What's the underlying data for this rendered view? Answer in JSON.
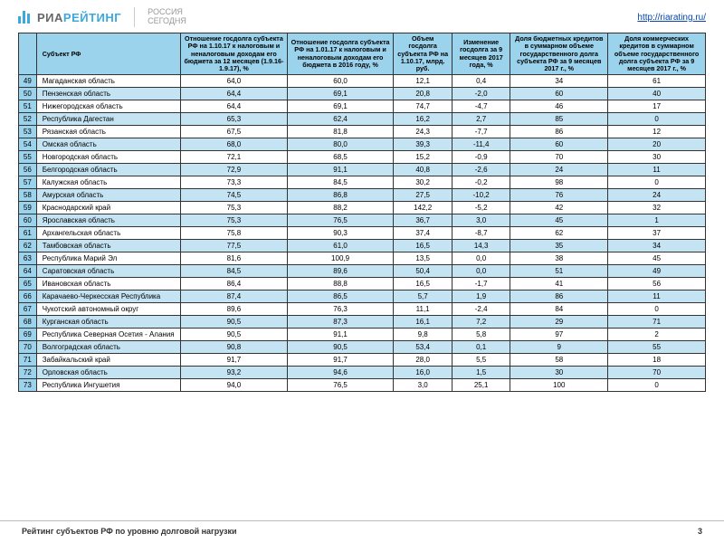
{
  "brand": {
    "ria": "РИА",
    "rating": "РЕЙТИНГ",
    "sub1": "РОССИЯ",
    "sub2": "СЕГОДНЯ"
  },
  "url": "http://riarating.ru/",
  "footer": {
    "title": "Рейтинг субъектов РФ по уровню долговой нагрузки",
    "page": "3"
  },
  "columns": [
    "",
    "Субъект РФ",
    "Отношение госдолга субъекта РФ на 1.10.17 к налоговым и неналоговым доходам его бюджета за 12 месяцев (1.9.16-1.9.17), %",
    "Отношение госдолга субъекта РФ на 1.01.17 к налоговым и неналоговым доходам его бюджета в 2016 году, %",
    "Объем госдолга субъекта РФ на 1.10.17, млрд. руб.",
    "Изменение госдолга за 9 месяцев 2017 года, %",
    "Доля бюджетных кредитов в суммарном объеме государственного долга субъекта РФ за 9 месяцев 2017 г., %",
    "Доля коммерческих кредитов в суммарном объеме государственного долга субъекта РФ за 9 месяцев 2017 г., %"
  ],
  "rows": [
    {
      "n": "49",
      "s": "Магаданская область",
      "v": [
        "64,0",
        "60,0",
        "12,1",
        "0,4",
        "34",
        "61"
      ]
    },
    {
      "n": "50",
      "s": "Пензенская область",
      "v": [
        "64,4",
        "69,1",
        "20,8",
        "-2,0",
        "60",
        "40"
      ]
    },
    {
      "n": "51",
      "s": "Нижегородская область",
      "v": [
        "64,4",
        "69,1",
        "74,7",
        "-4,7",
        "46",
        "17"
      ]
    },
    {
      "n": "52",
      "s": "Республика Дагестан",
      "v": [
        "65,3",
        "62,4",
        "16,2",
        "2,7",
        "85",
        "0"
      ]
    },
    {
      "n": "53",
      "s": "Рязанская область",
      "v": [
        "67,5",
        "81,8",
        "24,3",
        "-7,7",
        "86",
        "12"
      ]
    },
    {
      "n": "54",
      "s": "Омская область",
      "v": [
        "68,0",
        "80,0",
        "39,3",
        "-11,4",
        "60",
        "20"
      ]
    },
    {
      "n": "55",
      "s": "Новгородская область",
      "v": [
        "72,1",
        "68,5",
        "15,2",
        "-0,9",
        "70",
        "30"
      ]
    },
    {
      "n": "56",
      "s": "Белгородская область",
      "v": [
        "72,9",
        "91,1",
        "40,8",
        "-2,6",
        "24",
        "11"
      ]
    },
    {
      "n": "57",
      "s": "Калужская область",
      "v": [
        "73,3",
        "84,5",
        "30,2",
        "-0,2",
        "98",
        "0"
      ]
    },
    {
      "n": "58",
      "s": "Амурская область",
      "v": [
        "74,5",
        "86,8",
        "27,5",
        "-10,2",
        "76",
        "24"
      ]
    },
    {
      "n": "59",
      "s": "Краснодарский край",
      "v": [
        "75,3",
        "88,2",
        "142,2",
        "-5,2",
        "42",
        "32"
      ]
    },
    {
      "n": "60",
      "s": "Ярославская область",
      "v": [
        "75,3",
        "76,5",
        "36,7",
        "3,0",
        "45",
        "1"
      ]
    },
    {
      "n": "61",
      "s": "Архангельская область",
      "v": [
        "75,8",
        "90,3",
        "37,4",
        "-8,7",
        "62",
        "37"
      ]
    },
    {
      "n": "62",
      "s": "Тамбовская область",
      "v": [
        "77,5",
        "61,0",
        "16,5",
        "14,3",
        "35",
        "34"
      ]
    },
    {
      "n": "63",
      "s": "Республика Марий Эл",
      "v": [
        "81,6",
        "100,9",
        "13,5",
        "0,0",
        "38",
        "45"
      ]
    },
    {
      "n": "64",
      "s": "Саратовская область",
      "v": [
        "84,5",
        "89,6",
        "50,4",
        "0,0",
        "51",
        "49"
      ]
    },
    {
      "n": "65",
      "s": "Ивановская область",
      "v": [
        "86,4",
        "88,8",
        "16,5",
        "-1,7",
        "41",
        "56"
      ]
    },
    {
      "n": "66",
      "s": "Карачаево-Черкесская Республика",
      "v": [
        "87,4",
        "86,5",
        "5,7",
        "1,9",
        "86",
        "11"
      ]
    },
    {
      "n": "67",
      "s": "Чукотский автономный округ",
      "v": [
        "89,6",
        "76,3",
        "11,1",
        "-2,4",
        "84",
        "0"
      ]
    },
    {
      "n": "68",
      "s": "Курганская область",
      "v": [
        "90,5",
        "87,3",
        "16,1",
        "7,2",
        "29",
        "71"
      ]
    },
    {
      "n": "69",
      "s": "Республика Северная Осетия - Алания",
      "v": [
        "90,5",
        "91,1",
        "9,8",
        "5,8",
        "97",
        "2"
      ]
    },
    {
      "n": "70",
      "s": "Волгоградская область",
      "v": [
        "90,8",
        "90,5",
        "53,4",
        "0,1",
        "9",
        "55"
      ]
    },
    {
      "n": "71",
      "s": "Забайкальский край",
      "v": [
        "91,7",
        "91,7",
        "28,0",
        "5,5",
        "58",
        "18"
      ]
    },
    {
      "n": "72",
      "s": "Орловская область",
      "v": [
        "93,2",
        "94,6",
        "16,0",
        "1,5",
        "30",
        "70"
      ]
    },
    {
      "n": "73",
      "s": "Республика Ингушетия",
      "v": [
        "94,0",
        "76,5",
        "3,0",
        "25,1",
        "100",
        "0"
      ]
    }
  ],
  "styling": {
    "header_bg": "#9bd3ed",
    "row_even_bg": "#c4e4f4",
    "row_odd_bg": "#ffffff",
    "border_color": "#333333",
    "brand_blue": "#3ba9e0",
    "brand_gray": "#676767",
    "link_color": "#0645ad",
    "font_family": "Arial",
    "header_fontsize_pt": 7.2,
    "cell_fontsize_pt": 8,
    "col_widths_pct": [
      2.6,
      21,
      15.5,
      15.5,
      8.5,
      8.5,
      14.2,
      14.2
    ]
  }
}
